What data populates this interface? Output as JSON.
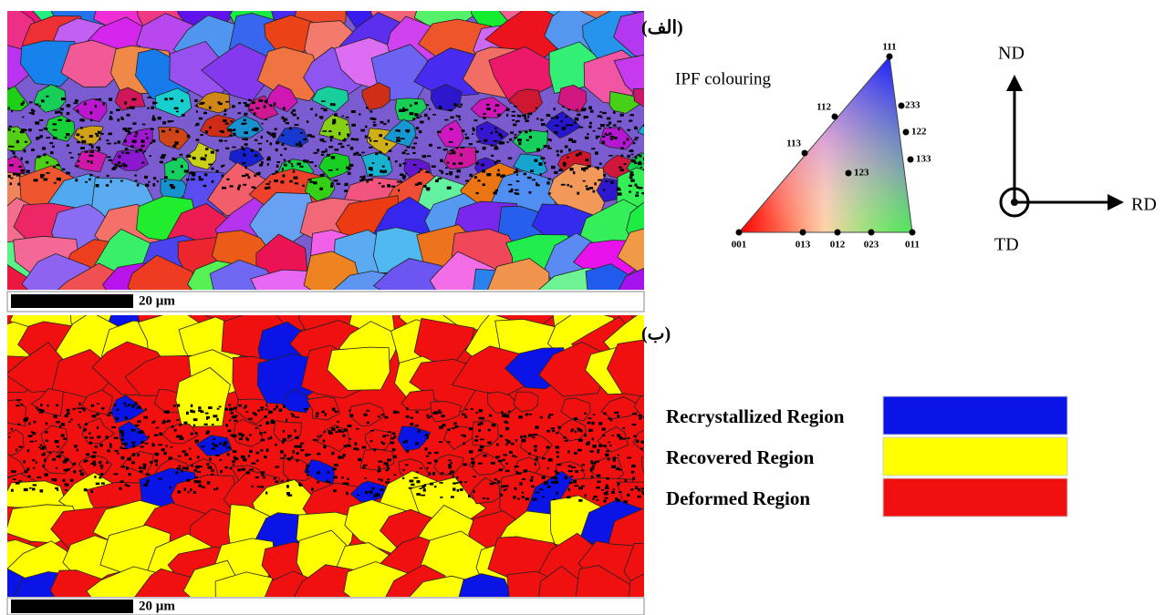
{
  "panels": [
    {
      "label": "(الف)",
      "scale_bar": "20 µm"
    },
    {
      "label": "(ب)",
      "scale_bar": "20 µm"
    }
  ],
  "ipf": {
    "title": "IPF colouring",
    "poles": [
      "111",
      "233",
      "122",
      "133",
      "112",
      "113",
      "123",
      "001",
      "013",
      "012",
      "023",
      "011"
    ]
  },
  "axes": {
    "nd": "ND",
    "rd": "RD",
    "td": "TD"
  },
  "legend": [
    {
      "label": "Recrystallized Region",
      "color": "#0a14e6"
    },
    {
      "label": "Recovered Region",
      "color": "#ffff00"
    },
    {
      "label": "Deformed Region",
      "color": "#f01010"
    }
  ]
}
